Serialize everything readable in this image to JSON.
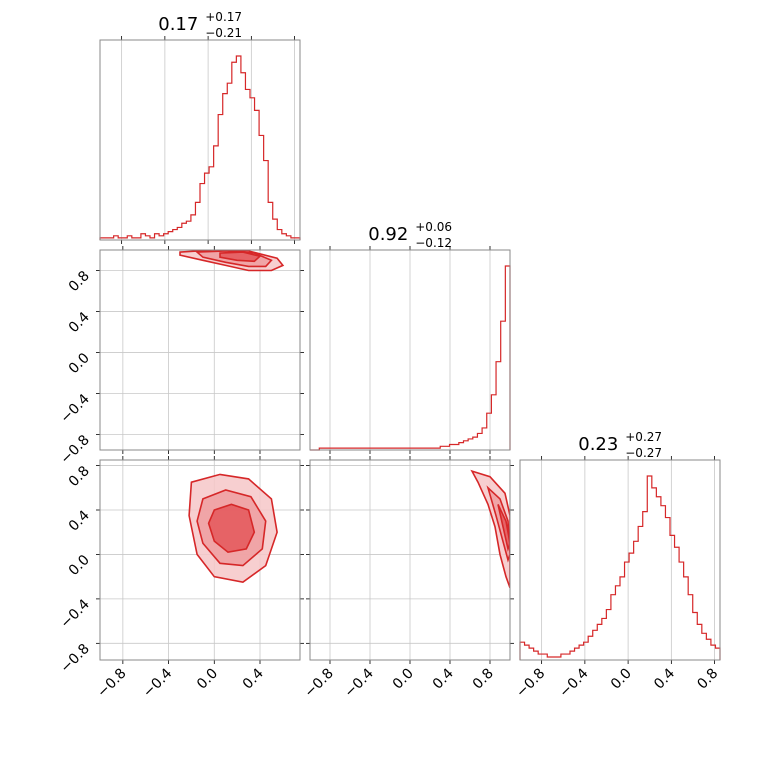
{
  "chart_data": {
    "type": "corner",
    "color": "#d62728",
    "params": [
      {
        "title": {
          "value": "0.17",
          "plus": "+0.17",
          "minus": "−0.21"
        },
        "hist": {
          "range": [
            -1.0,
            0.85
          ],
          "values": [
            1,
            1,
            1,
            2,
            1,
            1,
            2,
            1,
            1,
            3,
            2,
            1,
            3,
            2,
            3,
            4,
            5,
            6,
            8,
            9,
            12,
            18,
            27,
            32,
            35,
            45,
            60,
            70,
            75,
            85,
            88,
            80,
            72,
            68,
            62,
            50,
            38,
            18,
            10,
            5,
            3,
            2,
            1,
            1
          ]
        }
      },
      {
        "title": {
          "value": "0.92",
          "plus": "+0.06",
          "minus": "−0.12"
        },
        "hist": {
          "range": [
            -1.0,
            1.0
          ],
          "values": [
            0,
            0,
            1,
            1,
            1,
            1,
            1,
            1,
            1,
            1,
            1,
            1,
            1,
            1,
            1,
            1,
            1,
            1,
            1,
            1,
            1,
            1,
            1,
            1,
            1,
            1,
            1,
            1,
            2,
            2,
            3,
            3,
            4,
            5,
            6,
            7,
            9,
            12,
            20,
            30,
            48,
            70,
            100
          ]
        }
      },
      {
        "title": {
          "value": "0.23",
          "plus": "+0.27",
          "minus": "−0.27"
        },
        "hist": {
          "range": [
            -1.0,
            0.85
          ],
          "values": [
            6,
            5,
            4,
            3,
            2,
            2,
            1,
            1,
            1,
            2,
            2,
            3,
            4,
            5,
            6,
            8,
            10,
            12,
            14,
            17,
            22,
            25,
            28,
            33,
            36,
            40,
            45,
            50,
            62,
            58,
            55,
            52,
            48,
            42,
            38,
            33,
            28,
            22,
            16,
            12,
            9,
            7,
            5,
            4
          ]
        }
      }
    ],
    "panels": {
      "1_0": {
        "xlim": [
          -1.0,
          0.75
        ],
        "ylim": [
          -0.95,
          1.0
        ],
        "contours": [
          [
            [
              -0.3,
              0.98
            ],
            [
              0.0,
              1.0
            ],
            [
              0.3,
              0.99
            ],
            [
              0.55,
              0.92
            ],
            [
              0.6,
              0.85
            ],
            [
              0.5,
              0.8
            ],
            [
              0.3,
              0.8
            ],
            [
              0.1,
              0.85
            ],
            [
              -0.1,
              0.9
            ],
            [
              -0.3,
              0.95
            ]
          ],
          [
            [
              -0.15,
              0.98
            ],
            [
              0.1,
              0.99
            ],
            [
              0.35,
              0.97
            ],
            [
              0.5,
              0.9
            ],
            [
              0.45,
              0.84
            ],
            [
              0.3,
              0.84
            ],
            [
              0.1,
              0.88
            ],
            [
              -0.1,
              0.93
            ]
          ],
          [
            [
              0.05,
              0.97
            ],
            [
              0.25,
              0.98
            ],
            [
              0.4,
              0.94
            ],
            [
              0.35,
              0.89
            ],
            [
              0.2,
              0.9
            ],
            [
              0.05,
              0.93
            ]
          ]
        ]
      },
      "2_0": {
        "xlim": [
          -1.0,
          0.75
        ],
        "ylim": [
          -0.95,
          0.85
        ],
        "contours": [
          [
            [
              -0.2,
              0.65
            ],
            [
              0.05,
              0.72
            ],
            [
              0.3,
              0.68
            ],
            [
              0.5,
              0.5
            ],
            [
              0.55,
              0.2
            ],
            [
              0.45,
              -0.1
            ],
            [
              0.25,
              -0.25
            ],
            [
              0.0,
              -0.2
            ],
            [
              -0.15,
              0.0
            ],
            [
              -0.22,
              0.35
            ]
          ],
          [
            [
              -0.1,
              0.5
            ],
            [
              0.1,
              0.58
            ],
            [
              0.32,
              0.52
            ],
            [
              0.45,
              0.3
            ],
            [
              0.42,
              0.05
            ],
            [
              0.25,
              -0.1
            ],
            [
              0.05,
              -0.08
            ],
            [
              -0.1,
              0.1
            ],
            [
              -0.15,
              0.3
            ]
          ],
          [
            [
              0.0,
              0.4
            ],
            [
              0.15,
              0.45
            ],
            [
              0.3,
              0.4
            ],
            [
              0.35,
              0.2
            ],
            [
              0.28,
              0.05
            ],
            [
              0.12,
              0.02
            ],
            [
              0.0,
              0.12
            ],
            [
              -0.05,
              0.28
            ]
          ]
        ]
      },
      "2_1": {
        "xlim": [
          -1.0,
          1.0
        ],
        "ylim": [
          -0.95,
          0.85
        ],
        "contours": [
          [
            [
              0.62,
              0.75
            ],
            [
              0.8,
              0.7
            ],
            [
              0.95,
              0.55
            ],
            [
              1.0,
              0.35
            ],
            [
              1.0,
              -0.3
            ],
            [
              0.96,
              -0.2
            ],
            [
              0.9,
              0.0
            ],
            [
              0.85,
              0.25
            ],
            [
              0.78,
              0.45
            ],
            [
              0.68,
              0.65
            ]
          ],
          [
            [
              0.78,
              0.6
            ],
            [
              0.9,
              0.5
            ],
            [
              0.98,
              0.3
            ],
            [
              1.0,
              0.0
            ],
            [
              0.98,
              -0.05
            ],
            [
              0.92,
              0.15
            ],
            [
              0.86,
              0.35
            ]
          ],
          [
            [
              0.88,
              0.45
            ],
            [
              0.96,
              0.3
            ],
            [
              1.0,
              0.1
            ],
            [
              0.98,
              0.05
            ],
            [
              0.93,
              0.25
            ]
          ]
        ]
      }
    },
    "axis_ticks": [
      -0.8,
      -0.4,
      0.0,
      0.4,
      0.8
    ],
    "x_tick_labels": {
      "0": [
        "−0.8",
        "−0.4",
        "0.0",
        "0.4"
      ],
      "1": [
        "−0.8",
        "−0.4",
        "0.0",
        "0.4",
        "0.8"
      ],
      "2": [
        "−0.8",
        "−0.4",
        "0.0",
        "0.4",
        "0.8"
      ]
    },
    "y_tick_labels": {
      "1": [
        "0.8",
        "0.4",
        "0.0",
        "−0.4",
        "−0.8"
      ],
      "2": [
        "0.8",
        "0.4",
        "0.0",
        "−0.4",
        "−0.8"
      ]
    }
  }
}
